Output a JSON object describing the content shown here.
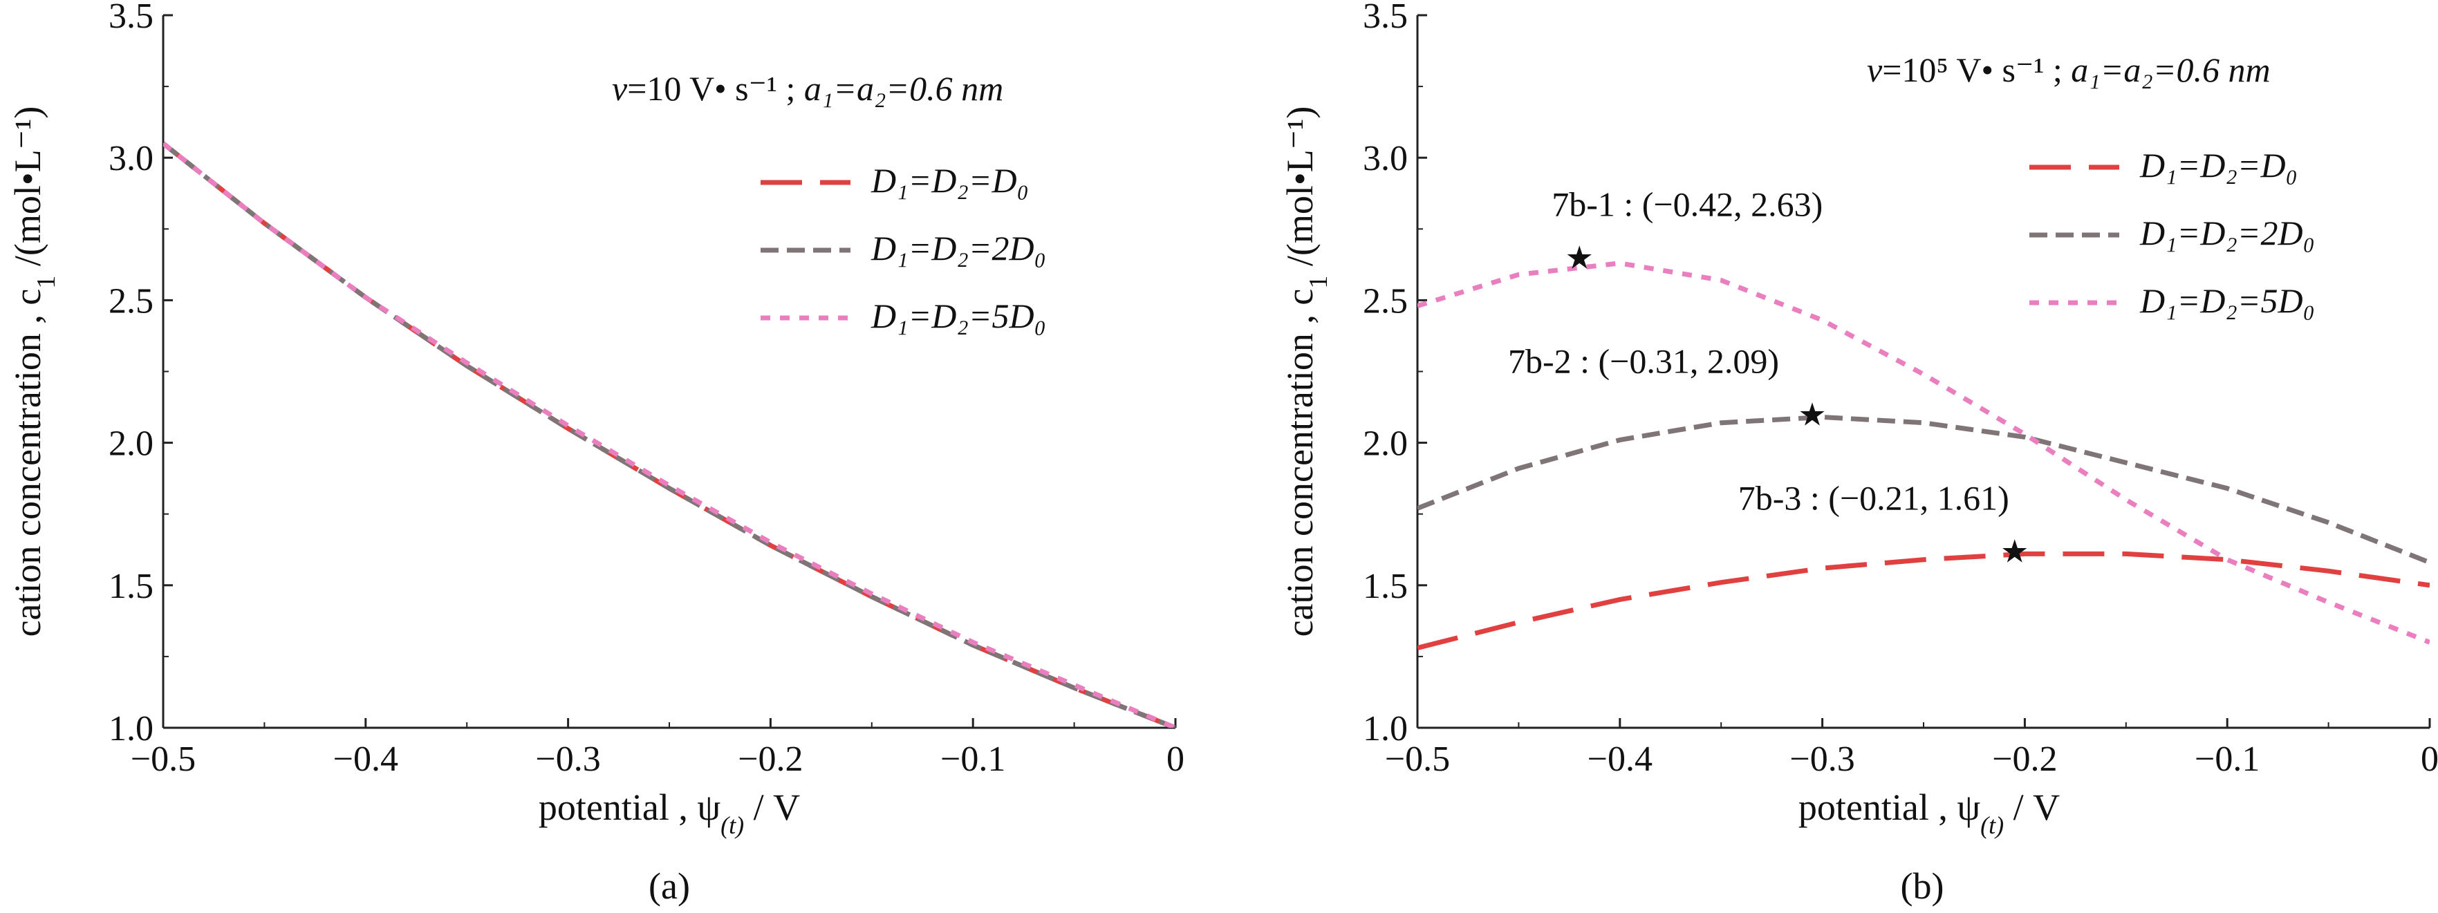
{
  "charts": [
    {
      "id": "a",
      "caption": "(a)",
      "xlabel": "potential , ψ",
      "xlabel_sub": "(t)",
      "xlabel_unit": " / V",
      "ylabel": "cation concentration , c",
      "ylabel_sub": "1",
      "ylabel_unit": " /(mol•L⁻¹)",
      "condition_v": "v",
      "condition_rate": "=10 V• s⁻¹ ; ",
      "condition_a": "a₁=a₂=0.6 nm",
      "xticks": [
        "−0.5",
        "−0.4",
        "−0.3",
        "−0.2",
        "−0.1",
        "0"
      ],
      "yticks": [
        "1.0",
        "1.5",
        "2.0",
        "2.5",
        "3.0",
        "3.5"
      ]
    },
    {
      "id": "b",
      "caption": "(b)",
      "xlabel": "potential , ψ",
      "xlabel_sub": "(t)",
      "xlabel_unit": " / V",
      "ylabel": "cation concentration , c",
      "ylabel_sub": "1",
      "ylabel_unit": " /(mol•L⁻¹)",
      "condition_v": "v",
      "condition_rate": "=10⁵ V• s⁻¹ ; ",
      "condition_a": "a₁=a₂=0.6 nm",
      "xticks": [
        "−0.5",
        "−0.4",
        "−0.3",
        "−0.2",
        "−0.1",
        "0"
      ],
      "yticks": [
        "1.0",
        "1.5",
        "2.0",
        "2.5",
        "3.0",
        "3.5"
      ],
      "annotations": [
        {
          "label": "7b-1 : (−0.42, 2.63)",
          "x": -0.42,
          "y": 2.65
        },
        {
          "label": "7b-2 : (−0.31, 2.09)",
          "x": -0.305,
          "y": 2.1
        },
        {
          "label": "7b-3 : (−0.21, 1.61)",
          "x": -0.205,
          "y": 1.62
        }
      ]
    }
  ],
  "legend": [
    {
      "label": "D₁=D₂=D₀",
      "color": "#e04040",
      "dash": "long"
    },
    {
      "label": "D₁=D₂=2D₀",
      "color": "#7f7577",
      "dash": "medium"
    },
    {
      "label": "D₁=D₂=5D₀",
      "color": "#ea7fc0",
      "dash": "short"
    }
  ],
  "chart_data": [
    {
      "type": "line",
      "panel": "(a)",
      "xlim": [
        -0.5,
        0
      ],
      "ylim": [
        1.0,
        3.5
      ],
      "series": [
        {
          "name": "D₁=D₂=D₀",
          "x": [
            -0.5,
            -0.45,
            -0.4,
            -0.35,
            -0.3,
            -0.25,
            -0.2,
            -0.15,
            -0.1,
            -0.05,
            0
          ],
          "y": [
            3.05,
            2.77,
            2.51,
            2.27,
            2.05,
            1.84,
            1.64,
            1.46,
            1.29,
            1.14,
            1.0
          ]
        },
        {
          "name": "D₁=D₂=2D₀",
          "x": [
            -0.5,
            -0.45,
            -0.4,
            -0.35,
            -0.3,
            -0.25,
            -0.2,
            -0.15,
            -0.1,
            -0.05,
            0
          ],
          "y": [
            3.05,
            2.77,
            2.51,
            2.27,
            2.05,
            1.84,
            1.64,
            1.46,
            1.29,
            1.14,
            1.0
          ]
        },
        {
          "name": "D₁=D₂=5D₀",
          "x": [
            -0.5,
            -0.45,
            -0.4,
            -0.35,
            -0.3,
            -0.25,
            -0.2,
            -0.15,
            -0.1,
            -0.05,
            0
          ],
          "y": [
            3.05,
            2.77,
            2.51,
            2.28,
            2.06,
            1.85,
            1.65,
            1.47,
            1.3,
            1.15,
            1.0
          ]
        }
      ]
    },
    {
      "type": "line",
      "panel": "(b)",
      "xlim": [
        -0.5,
        0
      ],
      "ylim": [
        1.0,
        3.5
      ],
      "series": [
        {
          "name": "D₁=D₂=D₀",
          "x": [
            -0.5,
            -0.45,
            -0.4,
            -0.35,
            -0.3,
            -0.25,
            -0.2,
            -0.15,
            -0.1,
            -0.05,
            0
          ],
          "y": [
            1.28,
            1.37,
            1.45,
            1.51,
            1.56,
            1.59,
            1.61,
            1.61,
            1.59,
            1.55,
            1.5
          ]
        },
        {
          "name": "D₁=D₂=2D₀",
          "x": [
            -0.5,
            -0.45,
            -0.4,
            -0.35,
            -0.3,
            -0.25,
            -0.2,
            -0.15,
            -0.1,
            -0.05,
            0
          ],
          "y": [
            1.77,
            1.91,
            2.01,
            2.07,
            2.09,
            2.07,
            2.02,
            1.93,
            1.84,
            1.72,
            1.58
          ]
        },
        {
          "name": "D₁=D₂=5D₀",
          "x": [
            -0.5,
            -0.45,
            -0.4,
            -0.35,
            -0.3,
            -0.25,
            -0.2,
            -0.15,
            -0.1,
            -0.05,
            0
          ],
          "y": [
            2.48,
            2.59,
            2.63,
            2.57,
            2.43,
            2.24,
            2.03,
            1.8,
            1.59,
            1.44,
            1.3
          ]
        }
      ]
    }
  ]
}
